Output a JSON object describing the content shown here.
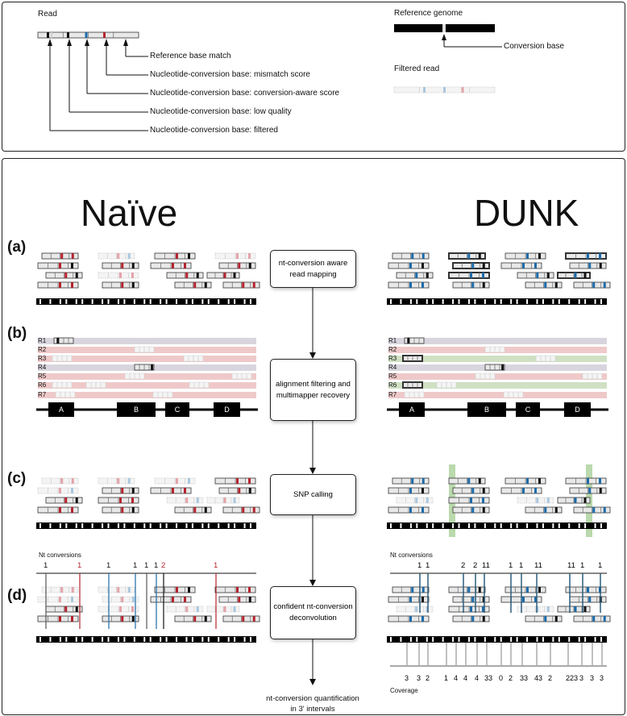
{
  "legend": {
    "read_label": "Read",
    "items": [
      "Reference base match",
      "Nucleotide-conversion base: mismatch score",
      "Nucleotide-conversion base: conversion-aware score",
      "Nucleotide-conversion base: low quality",
      "Nucleotide-conversion base: filtered"
    ],
    "reference_label": "Reference genome",
    "conversion_label": "Conversion base",
    "filtered_label": "Filtered read"
  },
  "titles": {
    "left": "Naïve",
    "right": "DUNK"
  },
  "panels": [
    "(a)",
    "(b)",
    "(c)",
    "(d)"
  ],
  "steps": [
    "nt-conversion aware read mapping",
    "alignment filtering and multimapper recovery",
    "SNP calling",
    "confident nt-conversion deconvolution"
  ],
  "final_step": "nt-conversion quantification in 3' intervals",
  "rows": [
    "R1",
    "R2",
    "R3",
    "R4",
    "R5",
    "R6",
    "R7"
  ],
  "genes": [
    "A",
    "B",
    "C",
    "D"
  ],
  "row_colors": {
    "left": [
      "#d9d5de",
      "#efc9c9",
      "#efc9c9",
      "#d9d5de",
      "#efc9c9",
      "#efc9c9",
      "#efc9c9"
    ],
    "right": [
      "#d9d5de",
      "#efc9c9",
      "#cfe0c3",
      "#d9d5de",
      "#efc9c9",
      "#cfe0c3",
      "#efc9c9"
    ]
  },
  "colors": {
    "mismatch": "#b3242e",
    "conversion_aware": "#1c6aa8",
    "snp_highlight": "#9cc98a"
  },
  "nt_conversions_label": "Nt conversions",
  "coverage_label": "Coverage",
  "left_conversions": [
    {
      "text": "1",
      "color": "#111"
    },
    {
      "text": "1",
      "color": "#b3242e"
    },
    {
      "text": "1",
      "color": "#111"
    },
    {
      "text": "1",
      "color": "#111"
    },
    {
      "text": "1",
      "color": "#111"
    },
    {
      "text": "1",
      "color": "#111"
    },
    {
      "text": "2",
      "color": "#b3242e"
    },
    {
      "text": "1",
      "color": "#b3242e"
    }
  ],
  "right_conversions": [
    "1",
    "1",
    "2",
    "2",
    "11",
    "1",
    "1",
    "11",
    "11",
    "1",
    "1"
  ],
  "right_coverage": [
    "3",
    "3",
    "2",
    "1",
    "4",
    "4",
    "4",
    "33",
    "0",
    "2",
    "33",
    "43",
    "2",
    "223",
    "3",
    "3",
    "3"
  ]
}
